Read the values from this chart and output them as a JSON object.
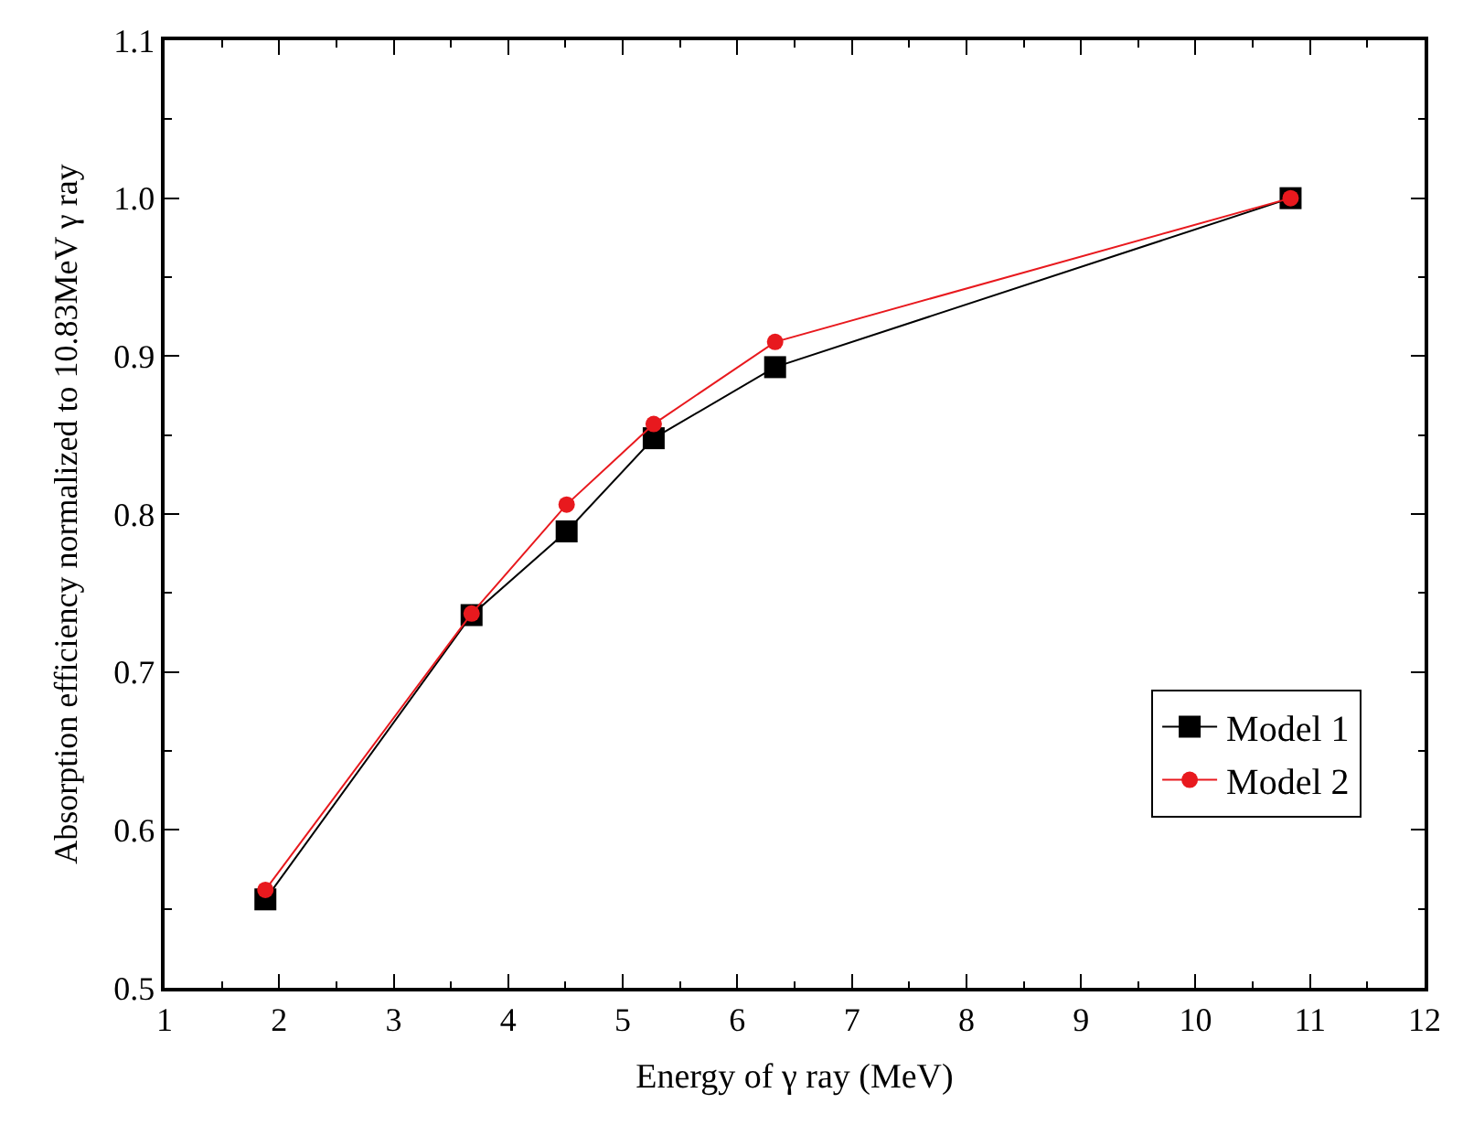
{
  "chart_data": {
    "type": "line",
    "xlabel": "Energy of γ ray (MeV)",
    "ylabel": "Absorption efficiency normalized to 10.83MeV γ ray",
    "x": [
      1.88,
      3.68,
      4.51,
      5.27,
      6.33,
      10.83
    ],
    "series": [
      {
        "name": "Model 1",
        "color": "#000000",
        "marker": "square",
        "values": [
          0.556,
          0.736,
          0.789,
          0.848,
          0.893,
          1.0
        ]
      },
      {
        "name": "Model 2",
        "color": "#e8191e",
        "marker": "circle",
        "values": [
          0.562,
          0.737,
          0.806,
          0.857,
          0.909,
          1.0
        ]
      }
    ],
    "xlim": [
      1,
      12
    ],
    "xticks": [
      1,
      2,
      3,
      4,
      5,
      6,
      7,
      8,
      9,
      10,
      11,
      12
    ],
    "ylim": [
      0.5,
      1.1
    ],
    "yticks": [
      {
        "value": 0.5,
        "label": "0.5"
      },
      {
        "value": 0.6,
        "label": "0.6"
      },
      {
        "value": 0.7,
        "label": "0.7"
      },
      {
        "value": 0.8,
        "label": "0.8"
      },
      {
        "value": 0.9,
        "label": "0.9"
      },
      {
        "value": 1.0,
        "label": "1.0"
      },
      {
        "value": 1.1,
        "label": "1.1"
      }
    ],
    "legend": "bottom right",
    "line_style": "solid"
  }
}
